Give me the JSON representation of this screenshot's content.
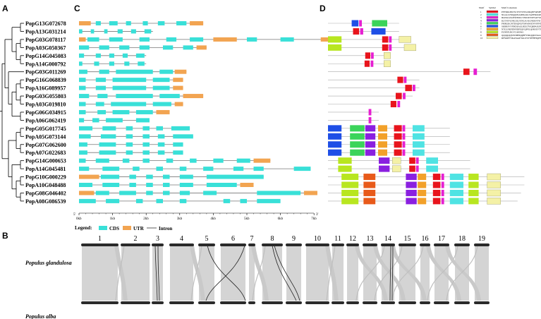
{
  "panels": {
    "a": "A",
    "b": "B",
    "c": "C",
    "d": "D"
  },
  "genes": [
    "PopG13G072678",
    "PopA13G031214",
    "PopG03G078117",
    "PopA03G050367",
    "PopG14G045083",
    "PopA14G000792",
    "PopG03G011269",
    "PopG16G068839",
    "PopA16G089957",
    "PopG03G055803",
    "PopA03G019810",
    "PopG06G034915",
    "PopA06G062419",
    "PopG05G017745",
    "PopA05G073144",
    "PopG07G062600",
    "PopA07G022683",
    "PopG14G000653",
    "PopA14G045481",
    "PopG10G000229",
    "PopA10G048488",
    "PopG08G046402",
    "PopA08G086539"
  ],
  "axis": {
    "ticks": [
      "0kb",
      "1kb",
      "2kb",
      "3kb",
      "4kb",
      "5kb",
      "6kb",
      "7kb"
    ],
    "left_end": "5'",
    "right_end": "3'"
  },
  "legend": {
    "title": "Legend:",
    "cds": "CDS",
    "utr": "UTR",
    "intron": "Intron"
  },
  "motif_table": {
    "headers": [
      "Motif",
      "Symbol",
      "Motif Consensus"
    ],
    "rows": [
      {
        "id": "1",
        "color": "#e8141c",
        "seq": "PPTSRKPKTSCTNVSYEGDKQPPSRSPPET"
      },
      {
        "id": "2",
        "color": "#4fe3e3",
        "seq": "NGGLLVMQQSNAIDNAKLSAPPSKKKMMVTPTKSDPKGDPN"
      },
      {
        "id": "3",
        "color": "#e61fd1",
        "seq": "IRAYAASANSEIMLCSNICRSVIPSAVVKTVGCISQDSLVWNVPLSMQQIV"
      },
      {
        "id": "4",
        "color": "#8a1fe0",
        "seq": "KLYNIVGNKCKLYINLIA-KGNKKNVKTVKLIRAKGLRGL"
      },
      {
        "id": "5",
        "color": "#3bd45a",
        "seq": "PMRGKGNTDSQNLPTAVANSENVSPNT"
      },
      {
        "id": "6",
        "color": "#1f4fe6",
        "seq": "SKRRSVYNNDEAGLRDLTVIQRPASLPRRQRDYEIHISVEEKKREEEVK"
      },
      {
        "id": "7",
        "color": "#f2a12a",
        "seq": "NTGLNKPDNNDPEQVQPNLQSRSEVTWLPSLMDLLSSNLSKTLMI"
      },
      {
        "id": "8",
        "color": "#b8e620",
        "seq": "PGNEPLRGVCAKPAG"
      },
      {
        "id": "9",
        "color": "#e85a1a",
        "seq": "QQQQQQSSSSHHQQHFYSRQQKSSGGFANISSAQGNRGHE"
      },
      {
        "id": "10",
        "color": "#f4f1a6",
        "seq": "RPSKIPVSKATAAPTAGYLYSFFHHQPFPNLPSQPLFATT"
      }
    ]
  },
  "collinearity": {
    "species_top": "Populus glandulosa",
    "species_bottom": "Populus alba",
    "chromosomes": [
      "1",
      "2",
      "3",
      "4",
      "5",
      "6",
      "7",
      "8",
      "9",
      "10",
      "11",
      "12",
      "13",
      "14",
      "15",
      "16",
      "17",
      "18",
      "19"
    ]
  },
  "colors": {
    "cds": "#39e0d8",
    "utr": "#f2a451",
    "intron": "#777777",
    "ribbon": "#d4d4d4",
    "chromosome": "#2a2a2a"
  }
}
